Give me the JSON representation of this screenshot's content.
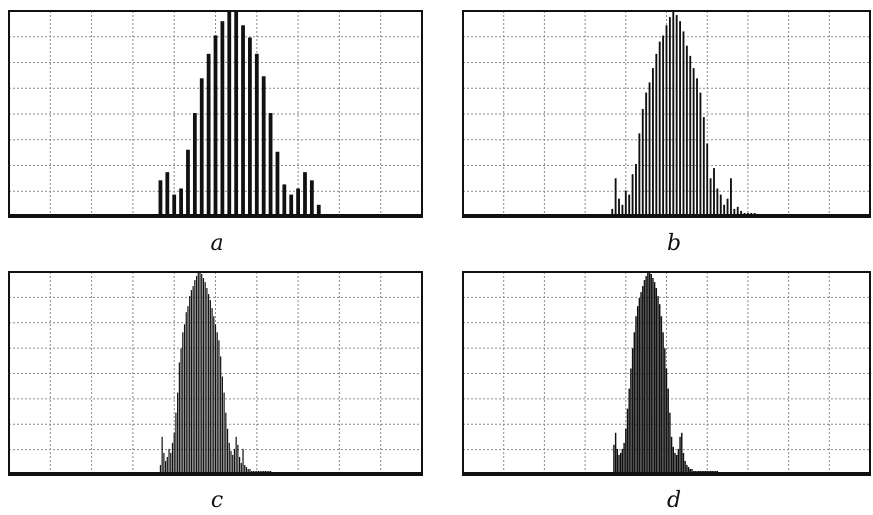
{
  "chart_data": [
    {
      "type": "bar",
      "caption": "a",
      "xlim": [
        0,
        60
      ],
      "ylim": [
        0,
        1.0
      ],
      "grid": true,
      "x": [
        22,
        23,
        24,
        25,
        26,
        27,
        28,
        29,
        30,
        31,
        32,
        33,
        34,
        35,
        36,
        37,
        38,
        39,
        40,
        41,
        42,
        43,
        44,
        45
      ],
      "values": [
        0.17,
        0.21,
        0.1,
        0.13,
        0.32,
        0.5,
        0.67,
        0.79,
        0.88,
        0.95,
        1.0,
        1.0,
        0.93,
        0.87,
        0.79,
        0.68,
        0.5,
        0.31,
        0.15,
        0.1,
        0.13,
        0.21,
        0.17,
        0.05
      ]
    },
    {
      "type": "bar",
      "caption": "b",
      "xlim": [
        0,
        120
      ],
      "ylim": [
        0,
        1.0
      ],
      "grid": true,
      "x": [
        44,
        45,
        46,
        47,
        48,
        49,
        50,
        51,
        52,
        53,
        54,
        55,
        56,
        57,
        58,
        59,
        60,
        61,
        62,
        63,
        64,
        65,
        66,
        67,
        68,
        69,
        70,
        71,
        72,
        73,
        74,
        75,
        76,
        77,
        78,
        79,
        80,
        81,
        82,
        83,
        84,
        85,
        86
      ],
      "values": [
        0.03,
        0.18,
        0.08,
        0.05,
        0.12,
        0.1,
        0.2,
        0.25,
        0.4,
        0.52,
        0.6,
        0.65,
        0.72,
        0.79,
        0.85,
        0.88,
        0.93,
        0.97,
        1.0,
        0.98,
        0.95,
        0.9,
        0.83,
        0.78,
        0.72,
        0.67,
        0.6,
        0.48,
        0.35,
        0.18,
        0.23,
        0.13,
        0.1,
        0.05,
        0.08,
        0.18,
        0.03,
        0.04,
        0.02,
        0.01,
        0.01,
        0.01,
        0.01
      ]
    },
    {
      "type": "bar",
      "caption": "c",
      "xlim": [
        0,
        240
      ],
      "ylim": [
        0,
        1.0
      ],
      "grid": true,
      "x": [
        88,
        89,
        90,
        91,
        92,
        93,
        94,
        95,
        96,
        97,
        98,
        99,
        100,
        101,
        102,
        103,
        104,
        105,
        106,
        107,
        108,
        109,
        110,
        111,
        112,
        113,
        114,
        115,
        116,
        117,
        118,
        119,
        120,
        121,
        122,
        123,
        124,
        125,
        126,
        127,
        128,
        129,
        130,
        131,
        132,
        133,
        134,
        135,
        136,
        137,
        138,
        139,
        140,
        141,
        142,
        143,
        144,
        145,
        146,
        147,
        148,
        149,
        150,
        151,
        152
      ],
      "values": [
        0.04,
        0.18,
        0.1,
        0.06,
        0.08,
        0.12,
        0.1,
        0.15,
        0.2,
        0.3,
        0.4,
        0.55,
        0.62,
        0.7,
        0.74,
        0.8,
        0.83,
        0.88,
        0.91,
        0.93,
        0.96,
        0.98,
        1.0,
        1.0,
        0.99,
        0.97,
        0.95,
        0.92,
        0.89,
        0.86,
        0.82,
        0.78,
        0.74,
        0.7,
        0.66,
        0.58,
        0.48,
        0.4,
        0.3,
        0.22,
        0.15,
        0.11,
        0.09,
        0.12,
        0.18,
        0.14,
        0.08,
        0.05,
        0.12,
        0.04,
        0.03,
        0.02,
        0.02,
        0.01,
        0.01,
        0.01,
        0.01,
        0.01,
        0.01,
        0.01,
        0.01,
        0.01,
        0.01,
        0.01,
        0.01
      ]
    },
    {
      "type": "bar",
      "caption": "d",
      "xlim": [
        0,
        480
      ],
      "ylim": [
        0,
        1.0
      ],
      "grid": true,
      "x": [
        178,
        180,
        182,
        184,
        186,
        188,
        190,
        192,
        194,
        196,
        198,
        200,
        202,
        204,
        206,
        208,
        210,
        212,
        214,
        216,
        218,
        220,
        222,
        224,
        226,
        228,
        230,
        232,
        234,
        236,
        238,
        240,
        242,
        244,
        246,
        248,
        250,
        252,
        254,
        256,
        258,
        260,
        262,
        264,
        266,
        268,
        270,
        272,
        274,
        276,
        278,
        280,
        282,
        284,
        286,
        288,
        290,
        292,
        294,
        296,
        298,
        300
      ],
      "values": [
        0.14,
        0.2,
        0.12,
        0.09,
        0.1,
        0.12,
        0.15,
        0.22,
        0.32,
        0.42,
        0.52,
        0.62,
        0.7,
        0.78,
        0.83,
        0.87,
        0.9,
        0.93,
        0.96,
        0.98,
        1.0,
        1.0,
        0.99,
        0.97,
        0.95,
        0.92,
        0.88,
        0.84,
        0.78,
        0.7,
        0.62,
        0.52,
        0.42,
        0.3,
        0.18,
        0.13,
        0.1,
        0.09,
        0.12,
        0.18,
        0.2,
        0.1,
        0.06,
        0.04,
        0.03,
        0.02,
        0.02,
        0.01,
        0.01,
        0.01,
        0.01,
        0.01,
        0.01,
        0.01,
        0.01,
        0.01,
        0.01,
        0.01,
        0.01,
        0.01,
        0.01,
        0.01
      ]
    }
  ]
}
